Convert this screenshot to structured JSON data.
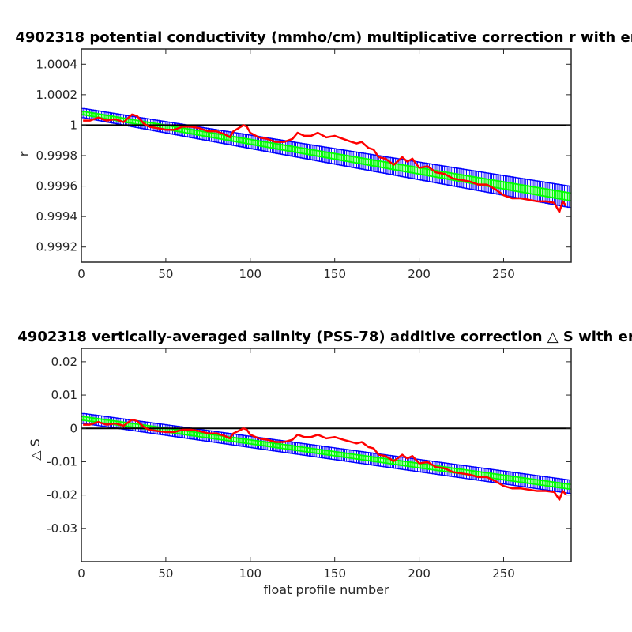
{
  "figure": {
    "background": "#ffffff"
  },
  "colors": {
    "axes": "#262626",
    "zero_line": "#000000",
    "upper_lower_markers": "#0000ff",
    "fit_markers": "#00ff00",
    "float_correction": "#ff0000"
  },
  "chart_data": [
    {
      "type": "line",
      "title": "4902318 potential conductivity (mmho/cm) multiplicative correction r with er",
      "xlabel": "",
      "ylabel": "r",
      "xlim": [
        0,
        290
      ],
      "ylim": [
        0.9991,
        1.0005
      ],
      "xticks": [
        0,
        50,
        100,
        150,
        200,
        250
      ],
      "xtick_labels": [
        "0",
        "50",
        "100",
        "150",
        "200",
        "250"
      ],
      "yticks": [
        0.9992,
        0.9994,
        0.9996,
        0.9998,
        1,
        1.0002,
        1.0004
      ],
      "ytick_labels": [
        "0.9992",
        "0.9994",
        "0.9996",
        "0.9998",
        "1",
        "1.0002",
        "1.0004"
      ],
      "reference_line": 1,
      "fit": {
        "center": {
          "x": [
            1,
            289
          ],
          "y": [
            1.00008,
            0.99953
          ]
        },
        "error_band": {
          "x": [
            1,
            289
          ],
          "upper": [
            1.00011,
            0.9996
          ],
          "lower": [
            1.00005,
            0.99946
          ]
        }
      },
      "series": [
        {
          "x": [
            1,
            5,
            10,
            15,
            20,
            25,
            28,
            30,
            33,
            37,
            40,
            45,
            50,
            55,
            60,
            65,
            70,
            75,
            80,
            85,
            88,
            90,
            93,
            96,
            98,
            100,
            105,
            110,
            115,
            120,
            125,
            128,
            132,
            136,
            140,
            145,
            150,
            155,
            160,
            163,
            166,
            170,
            173,
            176,
            180,
            185,
            190,
            193,
            196,
            200,
            205,
            210,
            215,
            220,
            225,
            230,
            235,
            240,
            245,
            250,
            255,
            260,
            265,
            270,
            275,
            280,
            283,
            285,
            287
          ],
          "y": [
            1.00003,
            1.00003,
            1.00005,
            1.00003,
            1.00004,
            1.00002,
            1.00005,
            1.00007,
            1.00006,
            1.00001,
            0.99999,
            0.99998,
            0.99997,
            0.99997,
            0.99999,
            0.99999,
            0.99998,
            0.99996,
            0.99996,
            0.99994,
            0.99992,
            0.99996,
            0.99998,
            1.0,
            0.99999,
            0.99995,
            0.99992,
            0.99991,
            0.99989,
            0.99989,
            0.99991,
            0.99995,
            0.99993,
            0.99993,
            0.99995,
            0.99992,
            0.99993,
            0.99991,
            0.99989,
            0.99988,
            0.99989,
            0.99985,
            0.99984,
            0.99979,
            0.99978,
            0.99974,
            0.99979,
            0.99976,
            0.99978,
            0.99972,
            0.99973,
            0.99969,
            0.99968,
            0.99965,
            0.99964,
            0.99963,
            0.99961,
            0.99961,
            0.99958,
            0.99954,
            0.99952,
            0.99952,
            0.99951,
            0.9995,
            0.9995,
            0.99949,
            0.99943,
            0.9995,
            0.99947
          ]
        }
      ]
    },
    {
      "type": "line",
      "title": "4902318 vertically-averaged salinity (PSS-78) additive correction △ S with er",
      "xlabel": "float profile number",
      "ylabel": "△ S",
      "xlim": [
        0,
        290
      ],
      "ylim": [
        -0.04,
        0.024
      ],
      "xticks": [
        0,
        50,
        100,
        150,
        200,
        250
      ],
      "xtick_labels": [
        "0",
        "50",
        "100",
        "150",
        "200",
        "250"
      ],
      "yticks": [
        -0.03,
        -0.02,
        -0.01,
        0,
        0.01,
        0.02
      ],
      "ytick_labels": [
        "-0.03",
        "-0.02",
        "-0.01",
        "0",
        "0.01",
        "0.02"
      ],
      "reference_line": 0,
      "fit": {
        "center": {
          "x": [
            1,
            289
          ],
          "y": [
            0.003,
            -0.0175
          ]
        },
        "error_band": {
          "x": [
            1,
            289
          ],
          "upper": [
            0.0045,
            -0.0155
          ],
          "lower": [
            0.0015,
            -0.0195
          ]
        }
      },
      "series": [
        {
          "x": [
            1,
            5,
            10,
            15,
            20,
            25,
            28,
            30,
            33,
            37,
            40,
            45,
            50,
            55,
            60,
            65,
            70,
            75,
            80,
            85,
            88,
            90,
            93,
            96,
            98,
            100,
            105,
            110,
            115,
            120,
            125,
            128,
            132,
            136,
            140,
            145,
            150,
            155,
            160,
            163,
            166,
            170,
            173,
            176,
            180,
            185,
            190,
            193,
            196,
            200,
            205,
            210,
            215,
            220,
            225,
            230,
            235,
            240,
            245,
            250,
            255,
            260,
            265,
            270,
            275,
            280,
            283,
            285,
            287
          ],
          "y": [
            0.0011,
            0.0011,
            0.0019,
            0.0011,
            0.0015,
            0.0008,
            0.0019,
            0.0026,
            0.0022,
            0.0004,
            -0.0004,
            -0.0008,
            -0.0011,
            -0.0011,
            -0.0004,
            -0.0004,
            -0.0008,
            -0.0015,
            -0.0015,
            -0.0023,
            -0.003,
            -0.0015,
            -0.0008,
            0.0,
            -0.0004,
            -0.0019,
            -0.003,
            -0.0034,
            -0.0041,
            -0.0041,
            -0.0034,
            -0.0019,
            -0.0026,
            -0.0026,
            -0.0019,
            -0.003,
            -0.0026,
            -0.0034,
            -0.0041,
            -0.0045,
            -0.0041,
            -0.0056,
            -0.006,
            -0.0079,
            -0.0083,
            -0.0098,
            -0.0079,
            -0.009,
            -0.0083,
            -0.0105,
            -0.0101,
            -0.0116,
            -0.012,
            -0.0131,
            -0.0135,
            -0.0139,
            -0.0146,
            -0.0146,
            -0.0158,
            -0.0173,
            -0.018,
            -0.018,
            -0.0184,
            -0.0188,
            -0.0188,
            -0.0191,
            -0.0214,
            -0.0188,
            -0.0199
          ]
        }
      ]
    }
  ]
}
